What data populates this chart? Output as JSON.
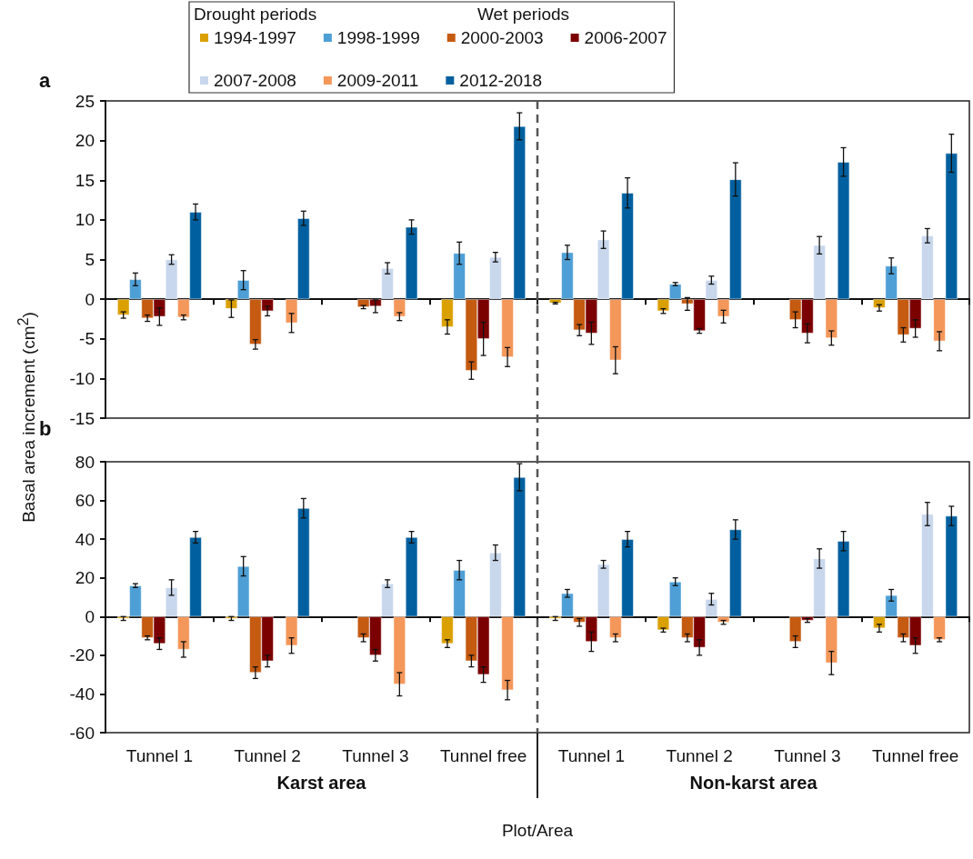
{
  "chart_data": [
    {
      "type": "bar",
      "title": "a",
      "ylabel": "Basal area increment (cm$^{2}$)",
      "annotations": [
        "Drought periods",
        "Wet periods"
      ],
      "legend": "top",
      "tick_labels": "y",
      "categories": [
        null,
        null,
        null,
        null,
        null,
        null,
        null,
        null
      ],
      "ylim": [
        -15,
        25
      ],
      "yticks": [
        -15,
        -10,
        -5,
        0,
        5,
        10,
        15,
        20,
        25
      ],
      "series": [
        {
          "name": "1994-1997",
          "color": "#daa000",
          "values": [
            -2,
            -1.2,
            null,
            -3.5,
            -0.5,
            -1.5,
            null,
            -1.1
          ],
          "errors": [
            0.4,
            1.1,
            null,
            0.9,
            0.1,
            0.3,
            null,
            0.4
          ]
        },
        {
          "name": "1998-1999",
          "color": "#4e9fd5",
          "values": [
            2.5,
            2.4,
            null,
            5.8,
            5.9,
            1.9,
            null,
            4.2
          ],
          "errors": [
            0.8,
            1.2,
            null,
            1.4,
            0.9,
            0.2,
            null,
            1.0
          ]
        },
        {
          "name": "2000-2003",
          "color": "#c55a11",
          "values": [
            -2.4,
            -5.7,
            -1,
            -9,
            -3.9,
            -0.6,
            -2.6,
            -4.5
          ],
          "errors": [
            0.4,
            0.6,
            0.2,
            1.1,
            0.7,
            0.8,
            1.0,
            0.9
          ]
        },
        {
          "name": "2006-2007",
          "color": "#7b0000",
          "values": [
            -2.2,
            -1.5,
            -0.9,
            -5,
            -4.3,
            -4,
            -4.3,
            -3.7
          ],
          "errors": [
            1.1,
            0.6,
            0.8,
            2.1,
            1.4,
            0.3,
            1.2,
            1.1
          ]
        },
        {
          "name": "2007-2008",
          "color": "#c8d7ec",
          "values": [
            5,
            null,
            3.9,
            5.3,
            7.5,
            2.4,
            6.8,
            8
          ],
          "errors": [
            0.6,
            null,
            0.7,
            0.6,
            1.1,
            0.5,
            1.1,
            0.9
          ]
        },
        {
          "name": "2009-2011",
          "color": "#f4975a",
          "values": [
            -2.3,
            -3,
            -2.2,
            -7.3,
            -7.7,
            -2.2,
            -4.9,
            -5.3
          ],
          "errors": [
            0.3,
            1.2,
            0.5,
            1.2,
            1.7,
            0.8,
            0.9,
            1.2
          ]
        },
        {
          "name": "2012-2018",
          "color": "#00609f",
          "values": [
            11,
            10.2,
            9.1,
            21.8,
            13.4,
            15.1,
            17.3,
            18.4
          ],
          "errors": [
            1,
            0.9,
            0.9,
            1.7,
            1.9,
            2.1,
            1.8,
            2.4
          ]
        }
      ]
    },
    {
      "type": "bar",
      "title": "b",
      "xlabel": "Plot/Area",
      "annotations": [
        "Karst area",
        "Non-karst area"
      ],
      "categories": [
        "Tunnel 1",
        "Tunnel 2",
        "Tunnel 3",
        "Tunnel free",
        "Tunnel 1",
        "Tunnel 2",
        "Tunnel 3",
        "Tunnel free"
      ],
      "ylim": [
        -60,
        80
      ],
      "yticks": [
        -60,
        -40,
        -20,
        0,
        20,
        40,
        60,
        80
      ],
      "series": [
        {
          "color": "#daa000",
          "values": [
            -1,
            -1,
            null,
            -14,
            -1,
            -7,
            null,
            -6
          ],
          "errors": [
            1,
            1,
            null,
            2,
            1,
            1,
            null,
            2
          ]
        },
        {
          "color": "#4e9fd5",
          "values": [
            16,
            26,
            null,
            24,
            12,
            18,
            null,
            11
          ],
          "errors": [
            1,
            5,
            null,
            5,
            2,
            2,
            null,
            3
          ]
        },
        {
          "color": "#c55a11",
          "values": [
            -11,
            -29,
            -11,
            -23,
            -3,
            -11,
            -13,
            -11
          ],
          "errors": [
            1,
            3,
            2,
            3,
            2,
            2,
            3,
            2
          ]
        },
        {
          "color": "#7b0000",
          "values": [
            -14,
            -23,
            -20,
            -30,
            -13,
            -16,
            -2,
            -15
          ],
          "errors": [
            3,
            3,
            3,
            4,
            5,
            4,
            1,
            4
          ]
        },
        {
          "color": "#c8d7ec",
          "values": [
            15,
            null,
            17,
            33,
            27,
            9,
            30,
            53
          ],
          "errors": [
            4,
            null,
            2,
            4,
            2,
            3,
            5,
            6
          ]
        },
        {
          "color": "#f4975a",
          "values": [
            -17,
            -15,
            -35,
            -38,
            -11,
            -3,
            -24,
            -12
          ],
          "errors": [
            4,
            4,
            6,
            5,
            2,
            1,
            6,
            1
          ]
        },
        {
          "color": "#00609f",
          "values": [
            41,
            56,
            41,
            72,
            40,
            45,
            39,
            52
          ],
          "errors": [
            3,
            5,
            3,
            7,
            4,
            5,
            5,
            5
          ]
        }
      ]
    }
  ]
}
